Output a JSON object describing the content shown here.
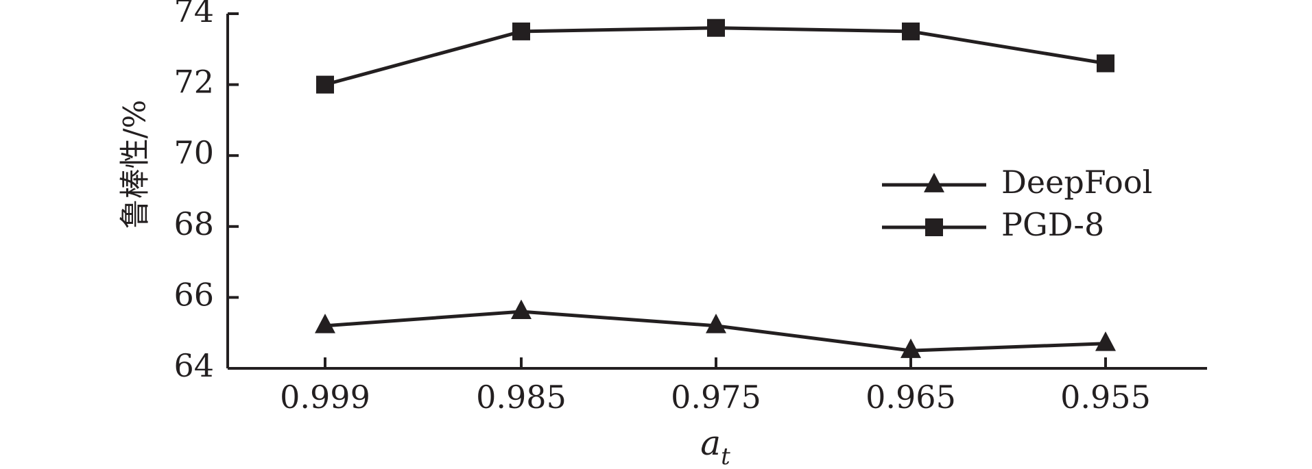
{
  "chart_data": {
    "type": "line",
    "x": [
      "0.999",
      "0.985",
      "0.975",
      "0.965",
      "0.955"
    ],
    "xlabel": "a",
    "xlabel_sub": "t",
    "ylabel": "鲁棒性/%",
    "ylim": [
      64,
      74
    ],
    "yticks": [
      "64",
      "66",
      "68",
      "70",
      "72",
      "74"
    ],
    "grid": false,
    "legend_position": "right",
    "series": [
      {
        "name": "DeepFool",
        "marker": "triangle",
        "values": [
          65.2,
          65.6,
          65.2,
          64.5,
          64.7
        ]
      },
      {
        "name": "PGD-8",
        "marker": "square",
        "values": [
          72.0,
          73.5,
          73.6,
          73.5,
          72.6
        ]
      }
    ]
  },
  "colors": {
    "ink": "#231f20"
  }
}
